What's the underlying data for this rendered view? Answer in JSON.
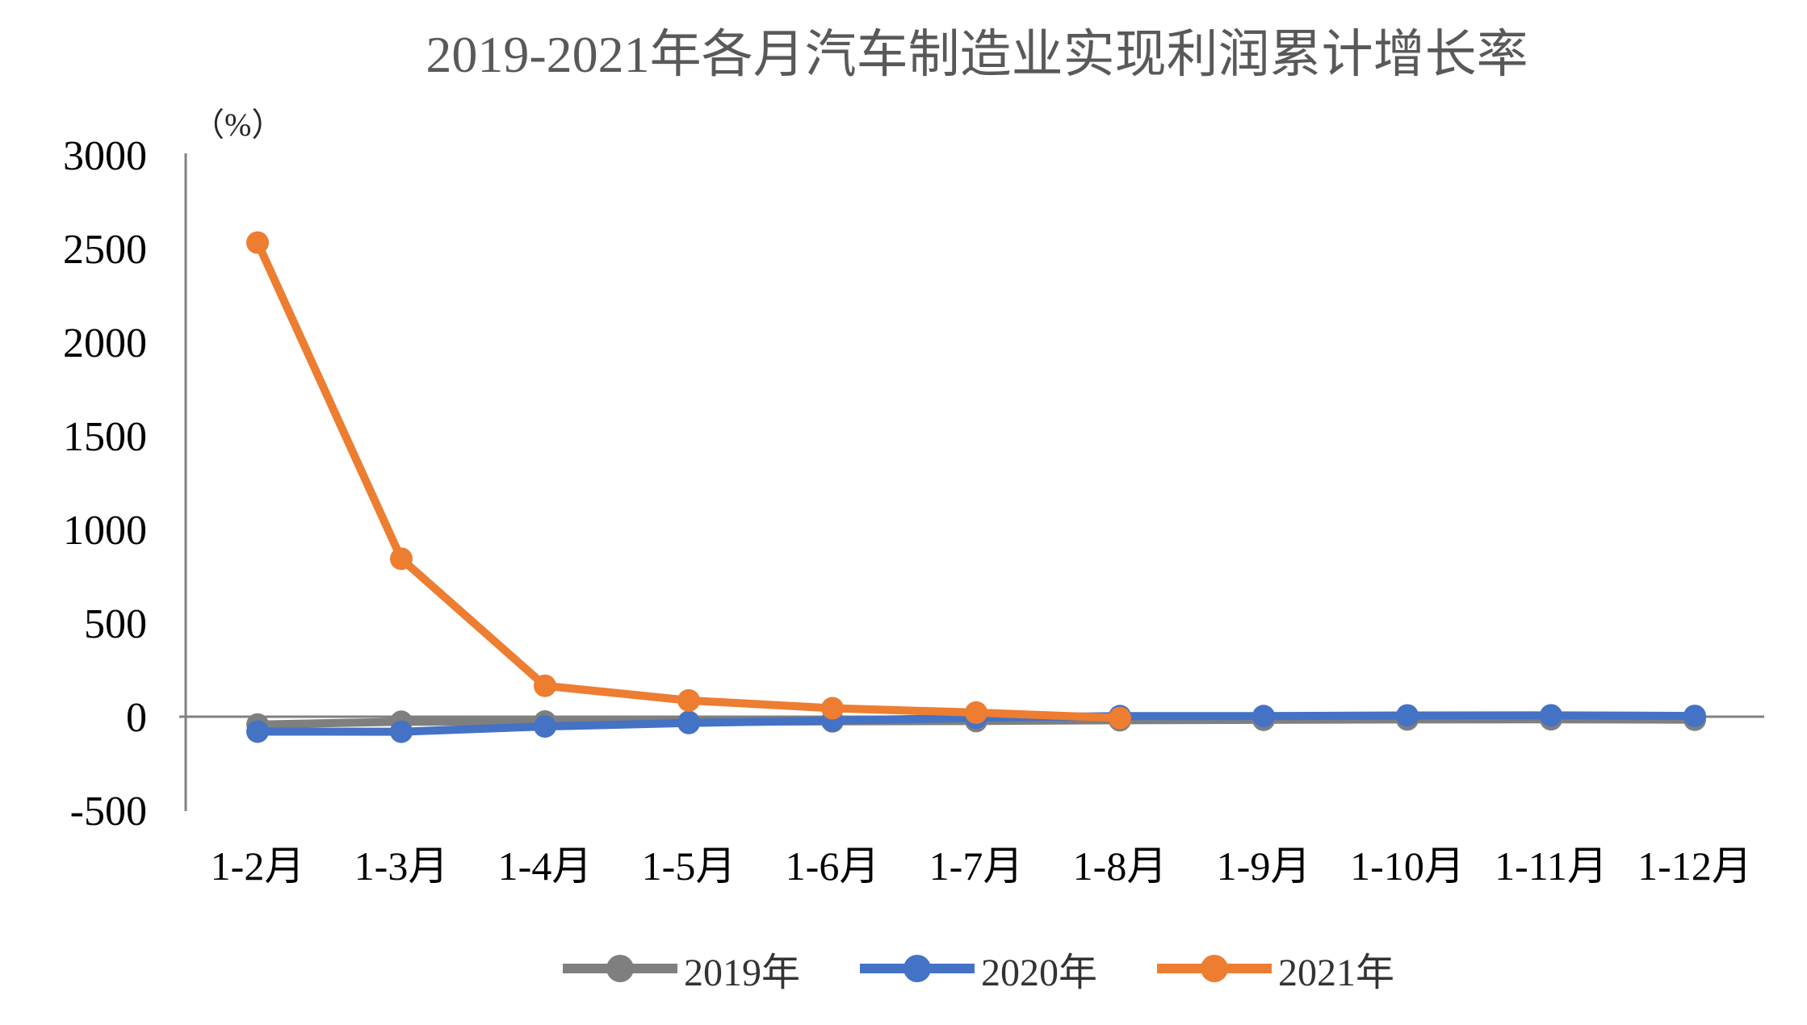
{
  "chart_data": {
    "type": "line",
    "title": "2019-2021年各月汽车制造业实现利润累计增长率",
    "unit_label": "（%）",
    "categories": [
      "1-2月",
      "1-3月",
      "1-4月",
      "1-5月",
      "1-6月",
      "1-7月",
      "1-8月",
      "1-9月",
      "1-10月",
      "1-11月",
      "1-12月"
    ],
    "series": [
      {
        "name": "2019年",
        "color": "#7F7F7F",
        "values": [
          -42.0,
          -27.0,
          -25.9,
          -27.4,
          -24.9,
          -23.2,
          -19.0,
          -16.6,
          -14.7,
          -13.9,
          -15.9
        ]
      },
      {
        "name": "2020年",
        "color": "#4472C4",
        "values": [
          -79.6,
          -80.2,
          -52.1,
          -33.5,
          -20.7,
          -5.9,
          3.2,
          3.0,
          6.6,
          7.2,
          4.0
        ]
      },
      {
        "name": "2021年",
        "color": "#ED7D31",
        "values": [
          2531.9,
          843.4,
          164.9,
          86.9,
          45.2,
          21.9,
          -7.0
        ]
      }
    ],
    "xlabel": "",
    "ylabel": "（%）",
    "ylim": [
      -500,
      3000
    ],
    "ytick_step": 500,
    "yticks": [
      3000,
      2500,
      2000,
      1500,
      1000,
      500,
      0,
      -500
    ],
    "grid": false,
    "legend_position": "bottom",
    "axis_color": "#808080",
    "title_color": "#595959",
    "tick_label_color": "#000000"
  }
}
